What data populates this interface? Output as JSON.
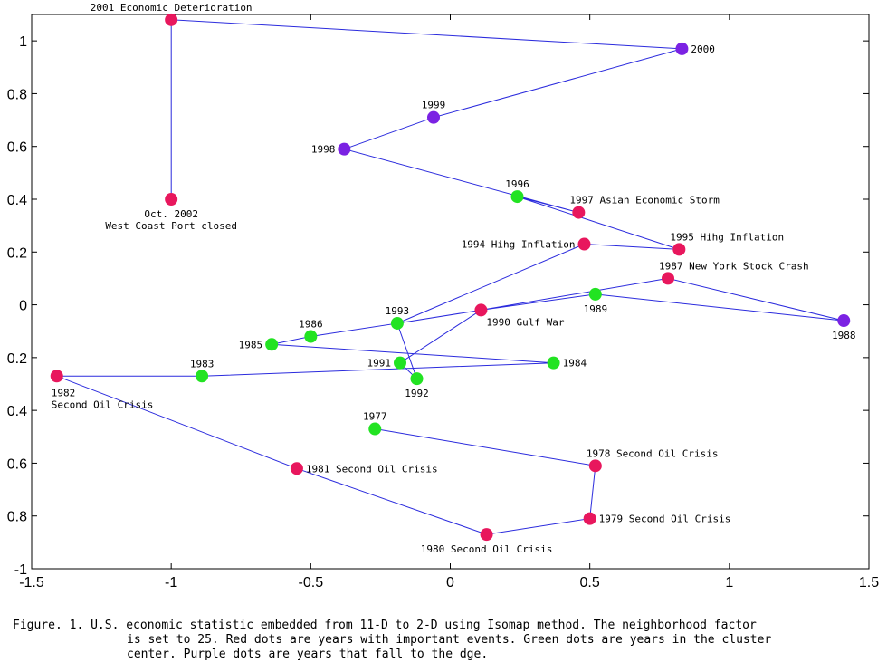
{
  "chart_data": {
    "type": "scatter",
    "xlim": [
      -1.5,
      1.5
    ],
    "ylim": [
      -1,
      1.1
    ],
    "x_ticks": [
      "-1.5",
      "-1",
      "-0.5",
      "0",
      "0.5",
      "1",
      "1.5"
    ],
    "x_tick_values": [
      -1.5,
      -1,
      -0.5,
      0,
      0.5,
      1,
      1.5
    ],
    "y_ticks": [
      "-1",
      "0.8",
      "0.6",
      "0.4",
      "0.2",
      "0",
      "0.2",
      "0.4",
      "0.6",
      "0.8",
      "1"
    ],
    "y_tick_values": [
      -1,
      -0.8,
      -0.6,
      -0.4,
      -0.2,
      0,
      0.2,
      0.4,
      0.6,
      0.8,
      1
    ],
    "grid": false,
    "legend": "none",
    "colors": {
      "red": "#e8175d",
      "green": "#22e322",
      "purple": "#7b22e3",
      "line": "#2b2bdd"
    },
    "points": [
      {
        "id": "1977",
        "x": -0.27,
        "y": -0.47,
        "color": "green",
        "label": "1977",
        "anchor": "above"
      },
      {
        "id": "1978",
        "x": 0.52,
        "y": -0.61,
        "color": "red",
        "label": "1978 Second Oil Crisis",
        "anchor": "above-right"
      },
      {
        "id": "1979",
        "x": 0.5,
        "y": -0.81,
        "color": "red",
        "label": "1979 Second Oil Crisis",
        "anchor": "right"
      },
      {
        "id": "1980",
        "x": 0.13,
        "y": -0.87,
        "color": "red",
        "label": "1980 Second Oil Crisis",
        "anchor": "below"
      },
      {
        "id": "1981",
        "x": -0.55,
        "y": -0.62,
        "color": "red",
        "label": "1981 Second Oil Crisis",
        "anchor": "right"
      },
      {
        "id": "1982",
        "x": -1.41,
        "y": -0.27,
        "color": "red",
        "label": "1982",
        "label2": "Second Oil Crisis",
        "anchor": "below-left"
      },
      {
        "id": "1983",
        "x": -0.89,
        "y": -0.27,
        "color": "green",
        "label": "1983",
        "anchor": "above"
      },
      {
        "id": "1984",
        "x": 0.37,
        "y": -0.22,
        "color": "green",
        "label": "1984",
        "anchor": "right"
      },
      {
        "id": "1985",
        "x": -0.64,
        "y": -0.15,
        "color": "green",
        "label": "1985",
        "anchor": "left"
      },
      {
        "id": "1986",
        "x": -0.5,
        "y": -0.12,
        "color": "green",
        "label": "1986",
        "anchor": "above"
      },
      {
        "id": "1987",
        "x": 0.78,
        "y": 0.1,
        "color": "red",
        "label": "1987 New York Stock Crash",
        "anchor": "above-right"
      },
      {
        "id": "1988",
        "x": 1.41,
        "y": -0.06,
        "color": "purple",
        "label": "1988",
        "anchor": "below"
      },
      {
        "id": "1989",
        "x": 0.52,
        "y": 0.04,
        "color": "green",
        "label": "1989",
        "anchor": "below"
      },
      {
        "id": "1990",
        "x": 0.11,
        "y": -0.02,
        "color": "red",
        "label": "1990 Gulf War",
        "anchor": "below-right"
      },
      {
        "id": "1991",
        "x": -0.18,
        "y": -0.22,
        "color": "green",
        "label": "1991",
        "anchor": "left"
      },
      {
        "id": "1992",
        "x": -0.12,
        "y": -0.28,
        "color": "green",
        "label": "1992",
        "anchor": "below"
      },
      {
        "id": "1993",
        "x": -0.19,
        "y": -0.07,
        "color": "green",
        "label": "1993",
        "anchor": "above"
      },
      {
        "id": "1994",
        "x": 0.48,
        "y": 0.23,
        "color": "red",
        "label": "1994 Hihg Inflation",
        "anchor": "left"
      },
      {
        "id": "1995",
        "x": 0.82,
        "y": 0.21,
        "color": "red",
        "label": "1995 Hihg Inflation",
        "anchor": "above-right"
      },
      {
        "id": "1996",
        "x": 0.24,
        "y": 0.41,
        "color": "green",
        "label": "1996",
        "anchor": "above"
      },
      {
        "id": "1997",
        "x": 0.46,
        "y": 0.35,
        "color": "red",
        "label": "1997 Asian Economic Storm",
        "anchor": "above-right"
      },
      {
        "id": "1998",
        "x": -0.38,
        "y": 0.59,
        "color": "purple",
        "label": "1998",
        "anchor": "left"
      },
      {
        "id": "1999",
        "x": -0.06,
        "y": 0.71,
        "color": "purple",
        "label": "1999",
        "anchor": "above"
      },
      {
        "id": "2000",
        "x": 0.83,
        "y": 0.97,
        "color": "purple",
        "label": "2000",
        "anchor": "right"
      },
      {
        "id": "2001",
        "x": -1.0,
        "y": 1.08,
        "color": "red",
        "label": "2001 Economic Deterioration",
        "anchor": "above"
      },
      {
        "id": "2002",
        "x": -1.0,
        "y": 0.4,
        "color": "red",
        "label": "Oct. 2002",
        "label2": "West Coast Port closed",
        "anchor": "below"
      }
    ],
    "path": [
      "1977",
      "1978",
      "1979",
      "1980",
      "1981",
      "1982",
      "1983",
      "1984",
      "1985",
      "1986",
      "1993",
      "1992",
      "1991",
      "1990",
      "1989",
      "1988",
      "1987",
      "1990",
      "1993",
      "1994",
      "1995",
      "1996",
      "1997",
      "1998",
      "1999",
      "2000",
      "2001",
      "2002"
    ]
  },
  "caption": {
    "line1": "Figure. 1. U.S. economic statistic embedded from 11-D to 2-D using Isomap method. The neighborhood factor",
    "line2": "is set to 25. Red dots are years with important events. Green dots are years in the cluster",
    "line3": "center. Purple dots are years that fall to the dge."
  }
}
